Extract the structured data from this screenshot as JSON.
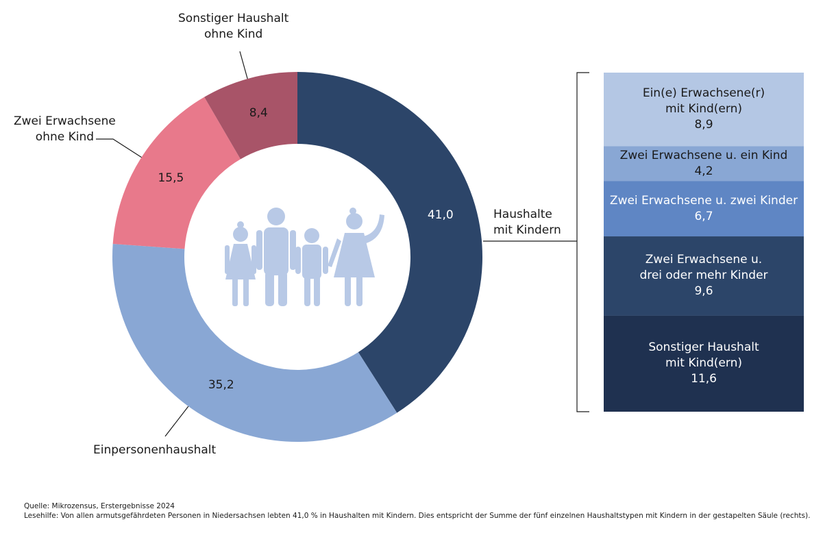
{
  "chart_data": [
    {
      "type": "pie",
      "donut": true,
      "categories": [
        "Haushalte\nmit Kindern",
        "Einpersonenhaushalt",
        "Zwei Erwachsene\nohne Kind",
        "Sonstiger Haushalt\nohne Kind"
      ],
      "values": [
        41.0,
        35.2,
        15.5,
        8.4
      ],
      "value_labels": [
        "41,0",
        "35,2",
        "15,5",
        "8,4"
      ],
      "colors": [
        "#2c4569",
        "#89a7d4",
        "#e8798b",
        "#a85468"
      ]
    },
    {
      "type": "bar",
      "stacked": true,
      "categories": [
        null
      ],
      "series": [
        {
          "name": "Ein(e) Erwachsene(r)\nmit Kind(ern)",
          "color": "#b4c7e4",
          "values": [
            8.9
          ],
          "value_labels": [
            "8,9"
          ]
        },
        {
          "name": "Zwei Erwachsene u. ein Kind",
          "color": "#89a7d4",
          "values": [
            4.2
          ],
          "value_labels": [
            "4,2"
          ]
        },
        {
          "name": "Zwei Erwachsene u. zwei Kinder",
          "color": "#5f86c4",
          "values": [
            6.7
          ],
          "value_labels": [
            "6,7"
          ]
        },
        {
          "name": "Zwei Erwachsene u.\ndrei oder mehr Kinder",
          "color": "#2c4569",
          "values": [
            9.6
          ],
          "value_labels": [
            "9,6"
          ]
        },
        {
          "name": "Sonstiger Haushalt\nmit Kind(ern)",
          "color": "#1f3150",
          "values": [
            11.6
          ],
          "value_labels": [
            "11,6"
          ]
        }
      ]
    }
  ],
  "footer": {
    "source": "Quelle: Mikrozensus, Erstergebnisse 2024",
    "note": "Lesehilfe: Von allen armutsgefährdeten Personen in Niedersachsen lebten 41,0 % in Haushalten mit Kindern. Dies entspricht der Summe der fünf einzelnen Haushaltstypen mit Kindern in der gestapelten Säule (rechts)."
  }
}
